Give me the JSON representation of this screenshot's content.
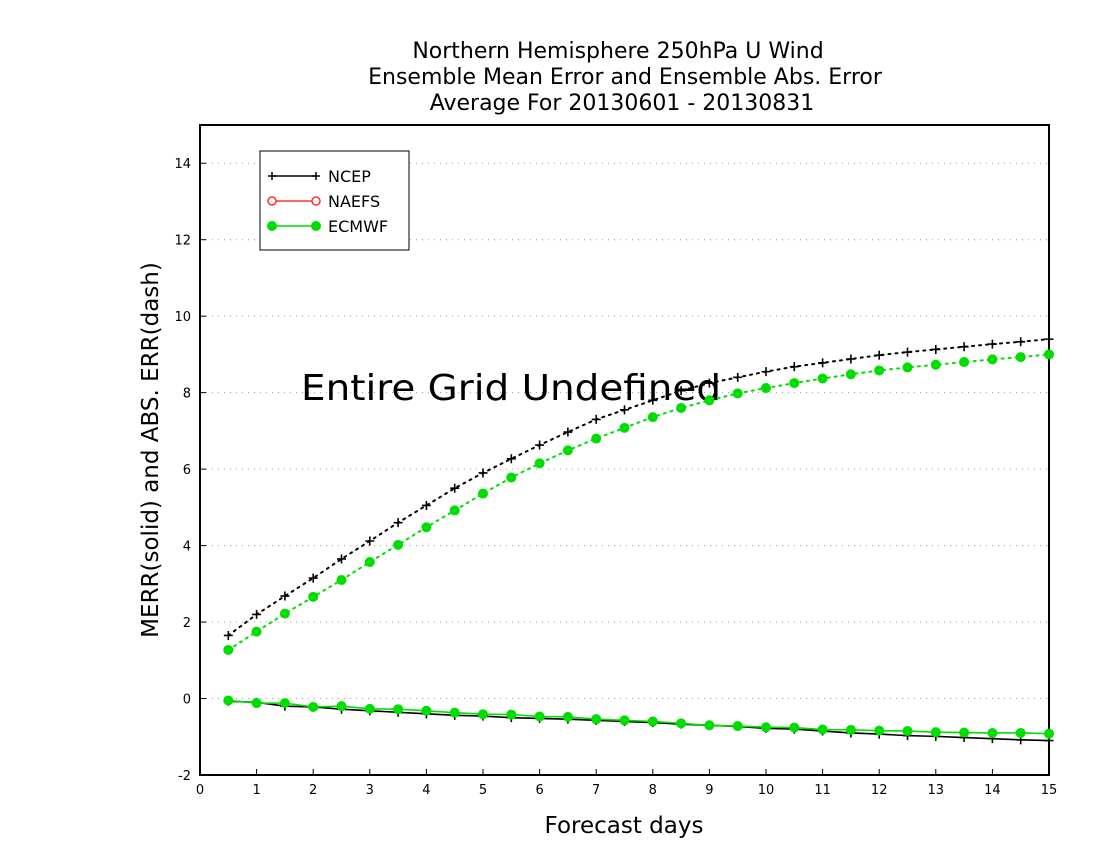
{
  "chart_data": {
    "type": "line",
    "title_lines": [
      "Northern Hemisphere 250hPa U Wind",
      "Ensemble Mean Error and Ensemble Abs. Error",
      "Average For 20130601 - 20130831"
    ],
    "xlabel": "Forecast days",
    "ylabel": "MERR(solid) and ABS. ERR(dash)",
    "xlim": [
      0,
      15
    ],
    "ylim": [
      -2,
      15
    ],
    "xticks": [
      0,
      1,
      2,
      3,
      4,
      5,
      6,
      7,
      8,
      9,
      10,
      11,
      12,
      13,
      14,
      15
    ],
    "yticks": [
      -2,
      0,
      2,
      4,
      6,
      8,
      10,
      12,
      14
    ],
    "ytick_labels": [
      "-2",
      "0",
      "2",
      "4",
      "6",
      "8",
      "10",
      "12",
      "14"
    ],
    "grid": "horizontal dotted",
    "legend_position": "top-left",
    "annotation": "Entire Grid Undefined",
    "x": [
      0.5,
      1,
      1.5,
      2,
      2.5,
      3,
      3.5,
      4,
      4.5,
      5,
      5.5,
      6,
      6.5,
      7,
      7.5,
      8,
      8.5,
      9,
      9.5,
      10,
      10.5,
      11,
      11.5,
      12,
      12.5,
      13,
      13.5,
      14,
      14.5,
      15
    ],
    "series": [
      {
        "name": "NCEP",
        "color": "#000000",
        "marker": "plus",
        "merr": [
          -0.07,
          -0.1,
          -0.2,
          -0.22,
          -0.28,
          -0.32,
          -0.36,
          -0.4,
          -0.44,
          -0.46,
          -0.5,
          -0.52,
          -0.54,
          -0.57,
          -0.6,
          -0.63,
          -0.67,
          -0.7,
          -0.73,
          -0.78,
          -0.8,
          -0.85,
          -0.9,
          -0.93,
          -0.97,
          -0.99,
          -1.02,
          -1.05,
          -1.08,
          -1.1
        ],
        "abs_err": [
          1.65,
          2.2,
          2.68,
          3.15,
          3.65,
          4.12,
          4.6,
          5.05,
          5.5,
          5.9,
          6.27,
          6.63,
          6.97,
          7.3,
          7.55,
          7.8,
          8.05,
          8.25,
          8.4,
          8.55,
          8.68,
          8.78,
          8.88,
          8.98,
          9.06,
          9.13,
          9.2,
          9.27,
          9.33,
          9.4
        ]
      },
      {
        "name": "NAEFS",
        "color": "#ff3333",
        "marker": "open-circle",
        "merr": [],
        "abs_err": []
      },
      {
        "name": "ECMWF",
        "color": "#00dd00",
        "marker": "filled-circle",
        "merr": [
          -0.05,
          -0.12,
          -0.12,
          -0.22,
          -0.2,
          -0.27,
          -0.28,
          -0.32,
          -0.37,
          -0.41,
          -0.42,
          -0.47,
          -0.48,
          -0.54,
          -0.57,
          -0.6,
          -0.65,
          -0.7,
          -0.72,
          -0.75,
          -0.76,
          -0.81,
          -0.82,
          -0.84,
          -0.85,
          -0.88,
          -0.89,
          -0.9,
          -0.9,
          -0.92
        ],
        "abs_err": [
          1.27,
          1.75,
          2.22,
          2.66,
          3.1,
          3.57,
          4.02,
          4.48,
          4.92,
          5.36,
          5.78,
          6.15,
          6.49,
          6.8,
          7.08,
          7.36,
          7.6,
          7.8,
          7.98,
          8.12,
          8.25,
          8.37,
          8.48,
          8.58,
          8.66,
          8.73,
          8.8,
          8.87,
          8.93,
          9.0
        ]
      }
    ]
  }
}
